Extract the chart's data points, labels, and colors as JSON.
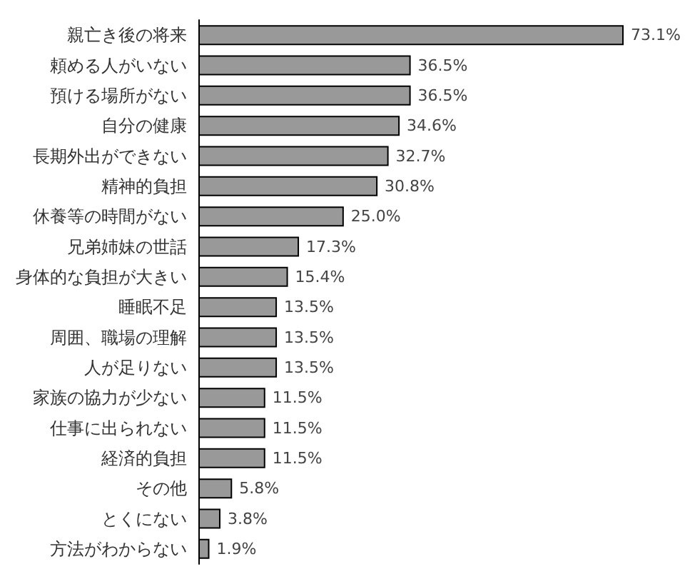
{
  "chart_data": {
    "type": "bar",
    "orientation": "horizontal",
    "color": "#999999",
    "categories": [
      "親亡き後の将来",
      "頼める人がいない",
      "預ける場所がない",
      "自分の健康",
      "長期外出ができない",
      "精神的負担",
      "休養等の時間がない",
      "兄弟姉妹の世話",
      "身体的な負担が大きい",
      "睡眠不足",
      "周囲、職場の理解",
      "人が足りない",
      "家族の協力が少ない",
      "仕事に出られない",
      "経済的負担",
      "その他",
      "とくにない",
      "方法がわからない"
    ],
    "values": [
      73.1,
      36.5,
      36.5,
      34.6,
      32.7,
      30.8,
      25.0,
      17.3,
      15.4,
      13.5,
      13.5,
      13.5,
      11.5,
      11.5,
      11.5,
      5.8,
      3.8,
      1.9
    ],
    "value_labels": [
      "73.1%",
      "36.5%",
      "36.5%",
      "34.6%",
      "32.7%",
      "30.8%",
      "25.0%",
      "17.3%",
      "15.4%",
      "13.5%",
      "13.5%",
      "13.5%",
      "11.5%",
      "11.5%",
      "11.5%",
      "5.8%",
      "3.8%",
      "1.9%"
    ]
  }
}
